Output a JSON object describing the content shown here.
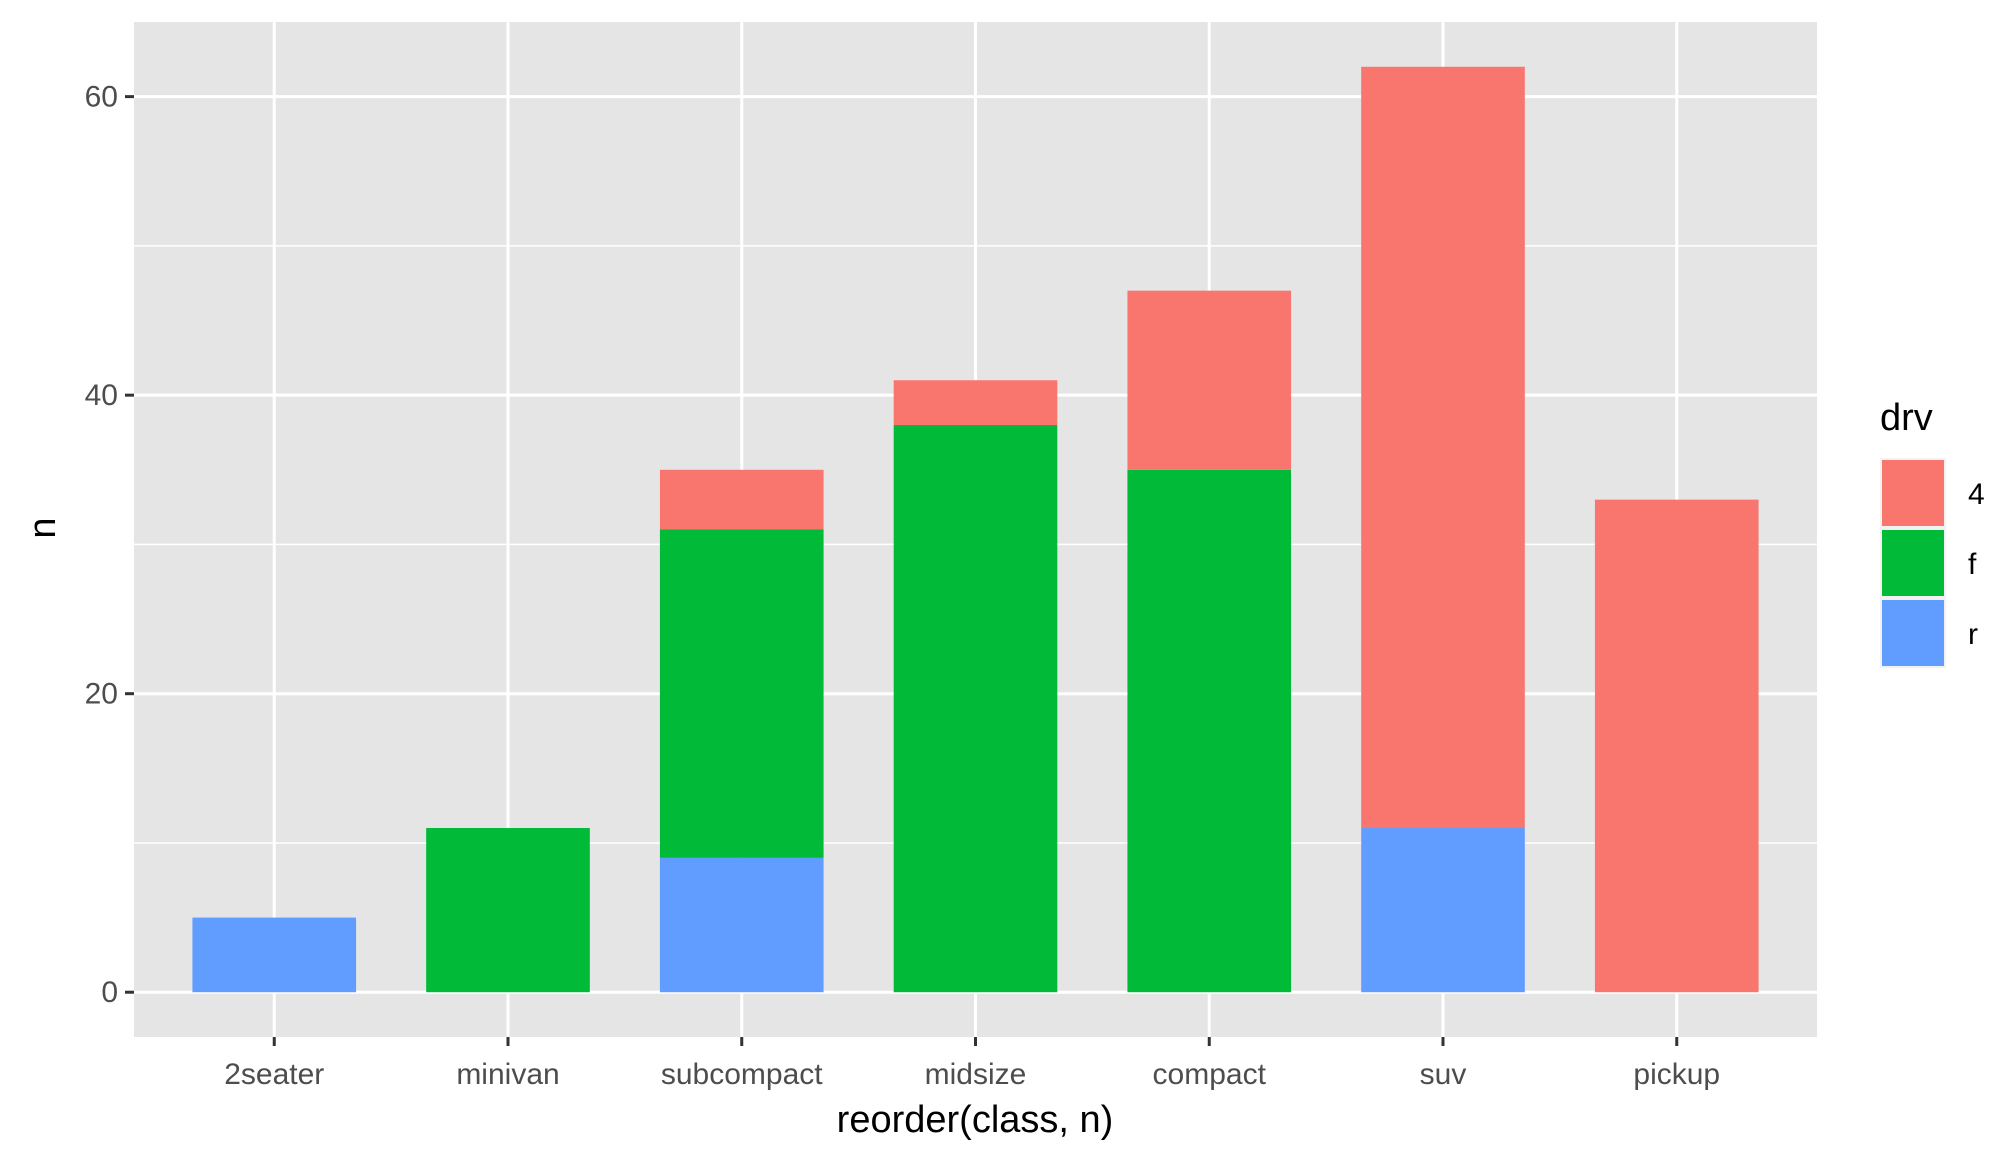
{
  "chart_data": {
    "type": "bar",
    "stacked": true,
    "xlabel": "reorder(class, n)",
    "ylabel": "n",
    "categories": [
      "2seater",
      "minivan",
      "subcompact",
      "midsize",
      "compact",
      "suv",
      "pickup"
    ],
    "series": [
      {
        "name": "4",
        "color": "#F8766D",
        "values": [
          0,
          0,
          4,
          3,
          12,
          51,
          33
        ]
      },
      {
        "name": "f",
        "color": "#00BA38",
        "values": [
          0,
          11,
          22,
          38,
          35,
          0,
          0
        ]
      },
      {
        "name": "r",
        "color": "#619CFF",
        "values": [
          5,
          0,
          9,
          0,
          0,
          11,
          0
        ]
      }
    ],
    "stack_order_bottom_to_top": [
      "r",
      "f",
      "4"
    ],
    "ylim": [
      -3,
      65
    ],
    "yticks": [
      0,
      20,
      40,
      60
    ],
    "grid": true,
    "legend": {
      "title": "drv",
      "position": "right"
    },
    "panel_background": "#E5E5E5",
    "grid_color": "#FFFFFF"
  }
}
